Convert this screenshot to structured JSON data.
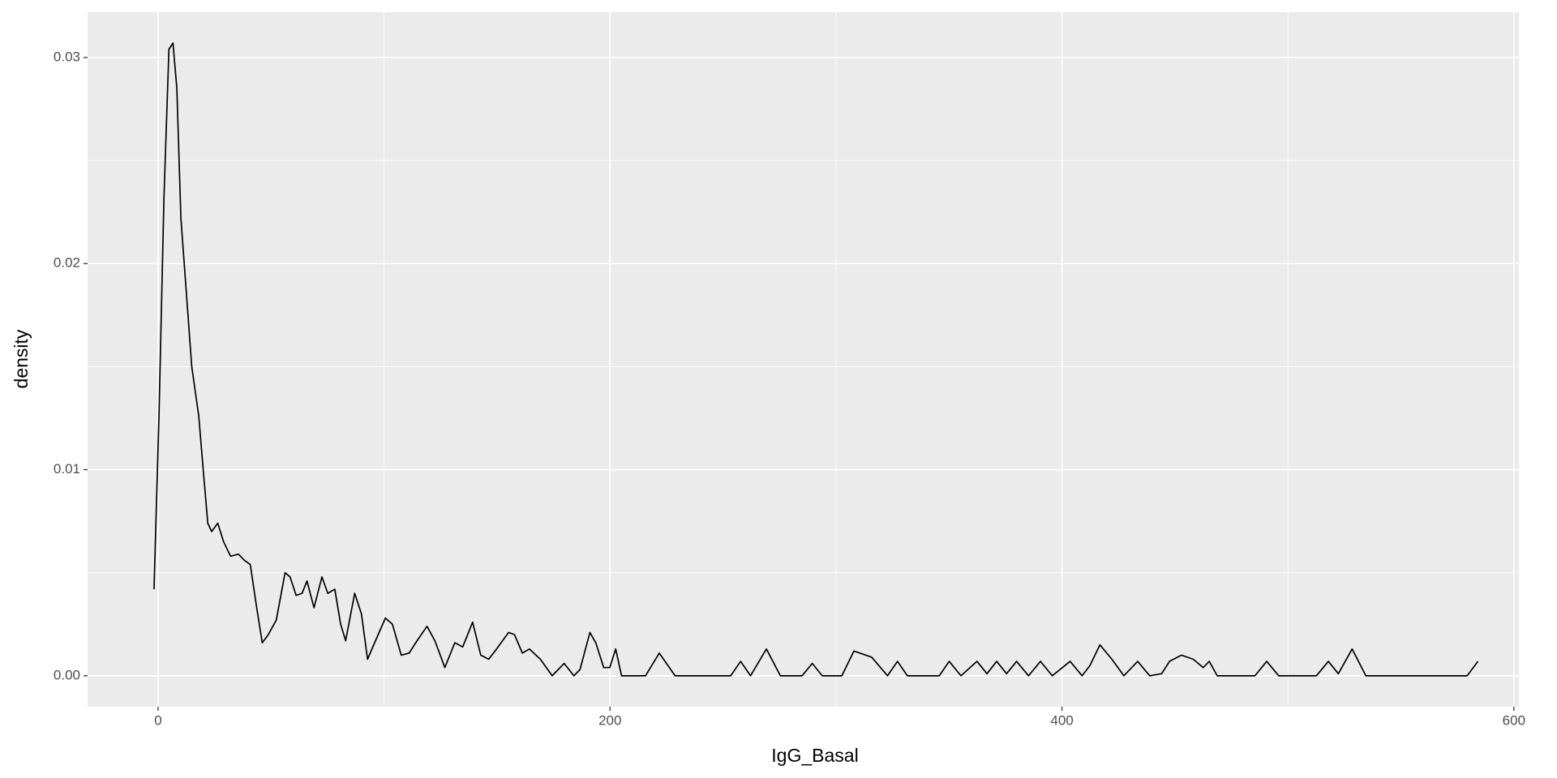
{
  "chart_data": {
    "type": "line",
    "xlabel": "IgG_Basal",
    "ylabel": "density",
    "x": [
      -1.8,
      0.4,
      2.6,
      4.8,
      6.6,
      8.3,
      10.1,
      12.7,
      14.9,
      18.0,
      20.2,
      22.0,
      23.7,
      26.4,
      29.0,
      32.1,
      35.6,
      38.2,
      40.8,
      43.5,
      46.1,
      48.8,
      52.3,
      56.2,
      58.4,
      61.1,
      63.7,
      65.9,
      69.0,
      72.5,
      75.1,
      78.2,
      80.8,
      83.0,
      87.0,
      90.0,
      92.7,
      96.2,
      100.6,
      103.7,
      107.6,
      111.1,
      114.6,
      119.0,
      122.5,
      126.9,
      131.3,
      134.8,
      139.2,
      142.8,
      146.3,
      149.8,
      155.1,
      157.7,
      161.2,
      164.3,
      169.2,
      174.4,
      179.7,
      184.0,
      186.7,
      191.1,
      193.7,
      197.2,
      199.9,
      202.5,
      205.1,
      215.7,
      221.8,
      228.8,
      253.4,
      257.8,
      262.2,
      269.2,
      275.4,
      285.0,
      289.5,
      293.9,
      302.6,
      307.9,
      315.8,
      322.8,
      327.2,
      331.6,
      345.7,
      350.1,
      355.3,
      362.4,
      366.8,
      371.1,
      375.5,
      379.9,
      385.2,
      390.5,
      395.7,
      403.6,
      408.9,
      412.4,
      416.8,
      422.1,
      427.4,
      433.5,
      438.8,
      444.1,
      447.6,
      452.9,
      458.1,
      462.5,
      465.2,
      468.7,
      485.4,
      490.6,
      495.9,
      512.6,
      517.9,
      522.3,
      528.4,
      534.5,
      579.3,
      584.1
    ],
    "values": [
      0.0042,
      0.0126,
      0.0232,
      0.0304,
      0.0307,
      0.0285,
      0.0222,
      0.0183,
      0.015,
      0.0126,
      0.0097,
      0.0074,
      0.007,
      0.0074,
      0.0065,
      0.0058,
      0.0059,
      0.0056,
      0.0054,
      0.0034,
      0.0016,
      0.002,
      0.0027,
      0.005,
      0.0048,
      0.0039,
      0.004,
      0.0046,
      0.0033,
      0.0048,
      0.004,
      0.0042,
      0.0025,
      0.0017,
      0.004,
      0.003,
      0.0008,
      0.0017,
      0.0028,
      0.0025,
      0.001,
      0.0011,
      0.0017,
      0.0024,
      0.0017,
      0.0004,
      0.0016,
      0.0014,
      0.0026,
      0.001,
      0.0008,
      0.0013,
      0.0021,
      0.002,
      0.0011,
      0.0013,
      0.0008,
      0,
      0.0006,
      0,
      0.0003,
      0.0021,
      0.0016,
      0.0004,
      0.0004,
      0.0013,
      0,
      0,
      0.0011,
      0,
      0,
      0.0007,
      0,
      0.0013,
      0,
      0,
      0.0006,
      0,
      0,
      0.0012,
      0.0009,
      0,
      0.0007,
      0,
      0,
      0.0007,
      0,
      0.0007,
      0.0001,
      0.0007,
      0.0001,
      0.0007,
      0,
      0.0007,
      0,
      0.0007,
      0,
      0.0005,
      0.0015,
      0.0008,
      0,
      0.0007,
      0,
      0.0001,
      0.0007,
      0.001,
      0.0008,
      0.0004,
      0.0007,
      0,
      0,
      0.0007,
      0,
      0,
      0.0007,
      0.0001,
      0.0013,
      0,
      0,
      0.0007
    ],
    "color": "#000000",
    "xlim": [
      -31.2,
      602.2
    ],
    "ylim": [
      -0.0015,
      0.0322
    ],
    "xticks": [
      0,
      200,
      400,
      600
    ],
    "xminorticks": [
      100,
      300,
      500
    ],
    "yticks": [
      {
        "value": 0,
        "label": "0.00"
      },
      {
        "value": 0.01,
        "label": "0.01"
      },
      {
        "value": 0.02,
        "label": "0.02"
      },
      {
        "value": 0.03,
        "label": "0.03"
      }
    ],
    "yminorticks": [
      0.005,
      0.015,
      0.025
    ],
    "grid": true
  }
}
